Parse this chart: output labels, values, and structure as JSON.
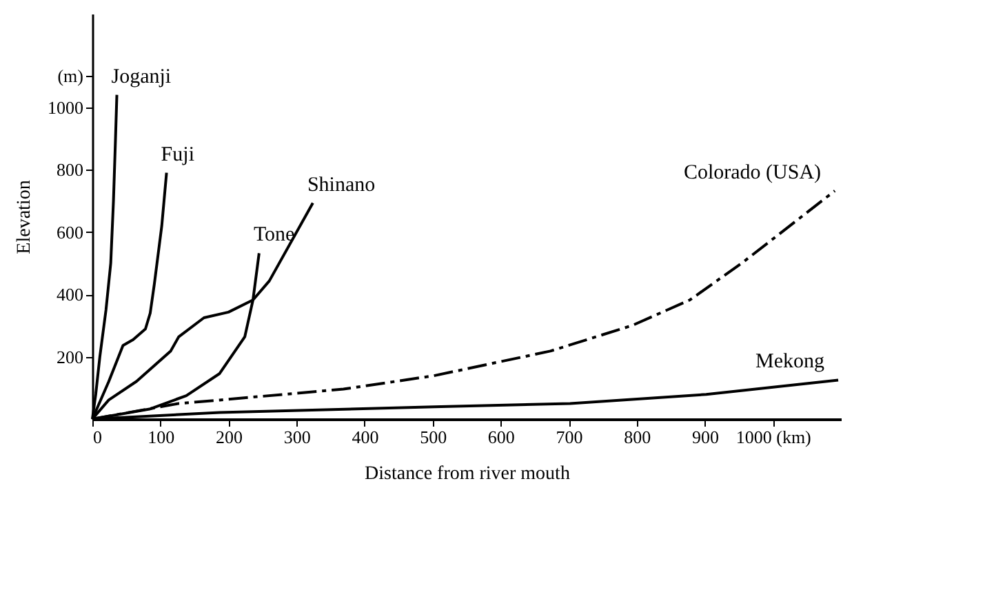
{
  "chart_data": {
    "type": "line",
    "xlabel": "Distance from river mouth",
    "ylabel": "Elevation",
    "xlim": [
      0,
      1100
    ],
    "ylim": [
      0,
      1300
    ],
    "xticks": [
      0,
      100,
      200,
      300,
      400,
      500,
      600,
      700,
      800,
      900,
      {
        "value": 1000,
        "label": "1000 (km)"
      }
    ],
    "yticks": [
      200,
      400,
      600,
      800,
      {
        "value": 1000,
        "label": "1000"
      },
      {
        "value": 1100,
        "label": "(m)"
      }
    ],
    "grid": false,
    "marker": "none",
    "series": [
      {
        "name": "Joganji",
        "color": "#000000",
        "line_style": "solid",
        "x": [
          0,
          5,
          11,
          20,
          27,
          31,
          34,
          36
        ],
        "values": [
          0,
          80,
          200,
          350,
          500,
          700,
          900,
          1040
        ]
      },
      {
        "name": "Fuji",
        "color": "#000000",
        "line_style": "solid",
        "x": [
          0,
          24,
          45,
          60,
          78,
          85,
          91,
          102,
          109
        ],
        "values": [
          0,
          120,
          236,
          255,
          289,
          340,
          432,
          620,
          790
        ]
      },
      {
        "name": "Tone",
        "color": "#000000",
        "line_style": "solid",
        "x": [
          0,
          84,
          138,
          187,
          224,
          236,
          245
        ],
        "values": [
          0,
          32,
          75,
          146,
          264,
          382,
          532
        ]
      },
      {
        "name": "Shinano",
        "color": "#000000",
        "line_style": "solid",
        "x": [
          0,
          24,
          65,
          115,
          127,
          164,
          200,
          236,
          260,
          324
        ],
        "values": [
          0,
          61,
          121,
          218,
          264,
          325,
          343,
          382,
          443,
          693
        ]
      },
      {
        "name": "Colorado (USA)",
        "color": "#000000",
        "line_style": "dashed",
        "x": [
          0,
          127,
          187,
          369,
          502,
          673,
          793,
          878,
          956,
          1091
        ],
        "values": [
          0,
          50,
          61,
          96,
          139,
          218,
          300,
          382,
          503,
          732
        ]
      },
      {
        "name": "Mekong",
        "color": "#000000",
        "line_style": "solid",
        "x": [
          0,
          187,
          502,
          702,
          902,
          1096
        ],
        "values": [
          0,
          21,
          39,
          50,
          79,
          125
        ]
      }
    ]
  }
}
